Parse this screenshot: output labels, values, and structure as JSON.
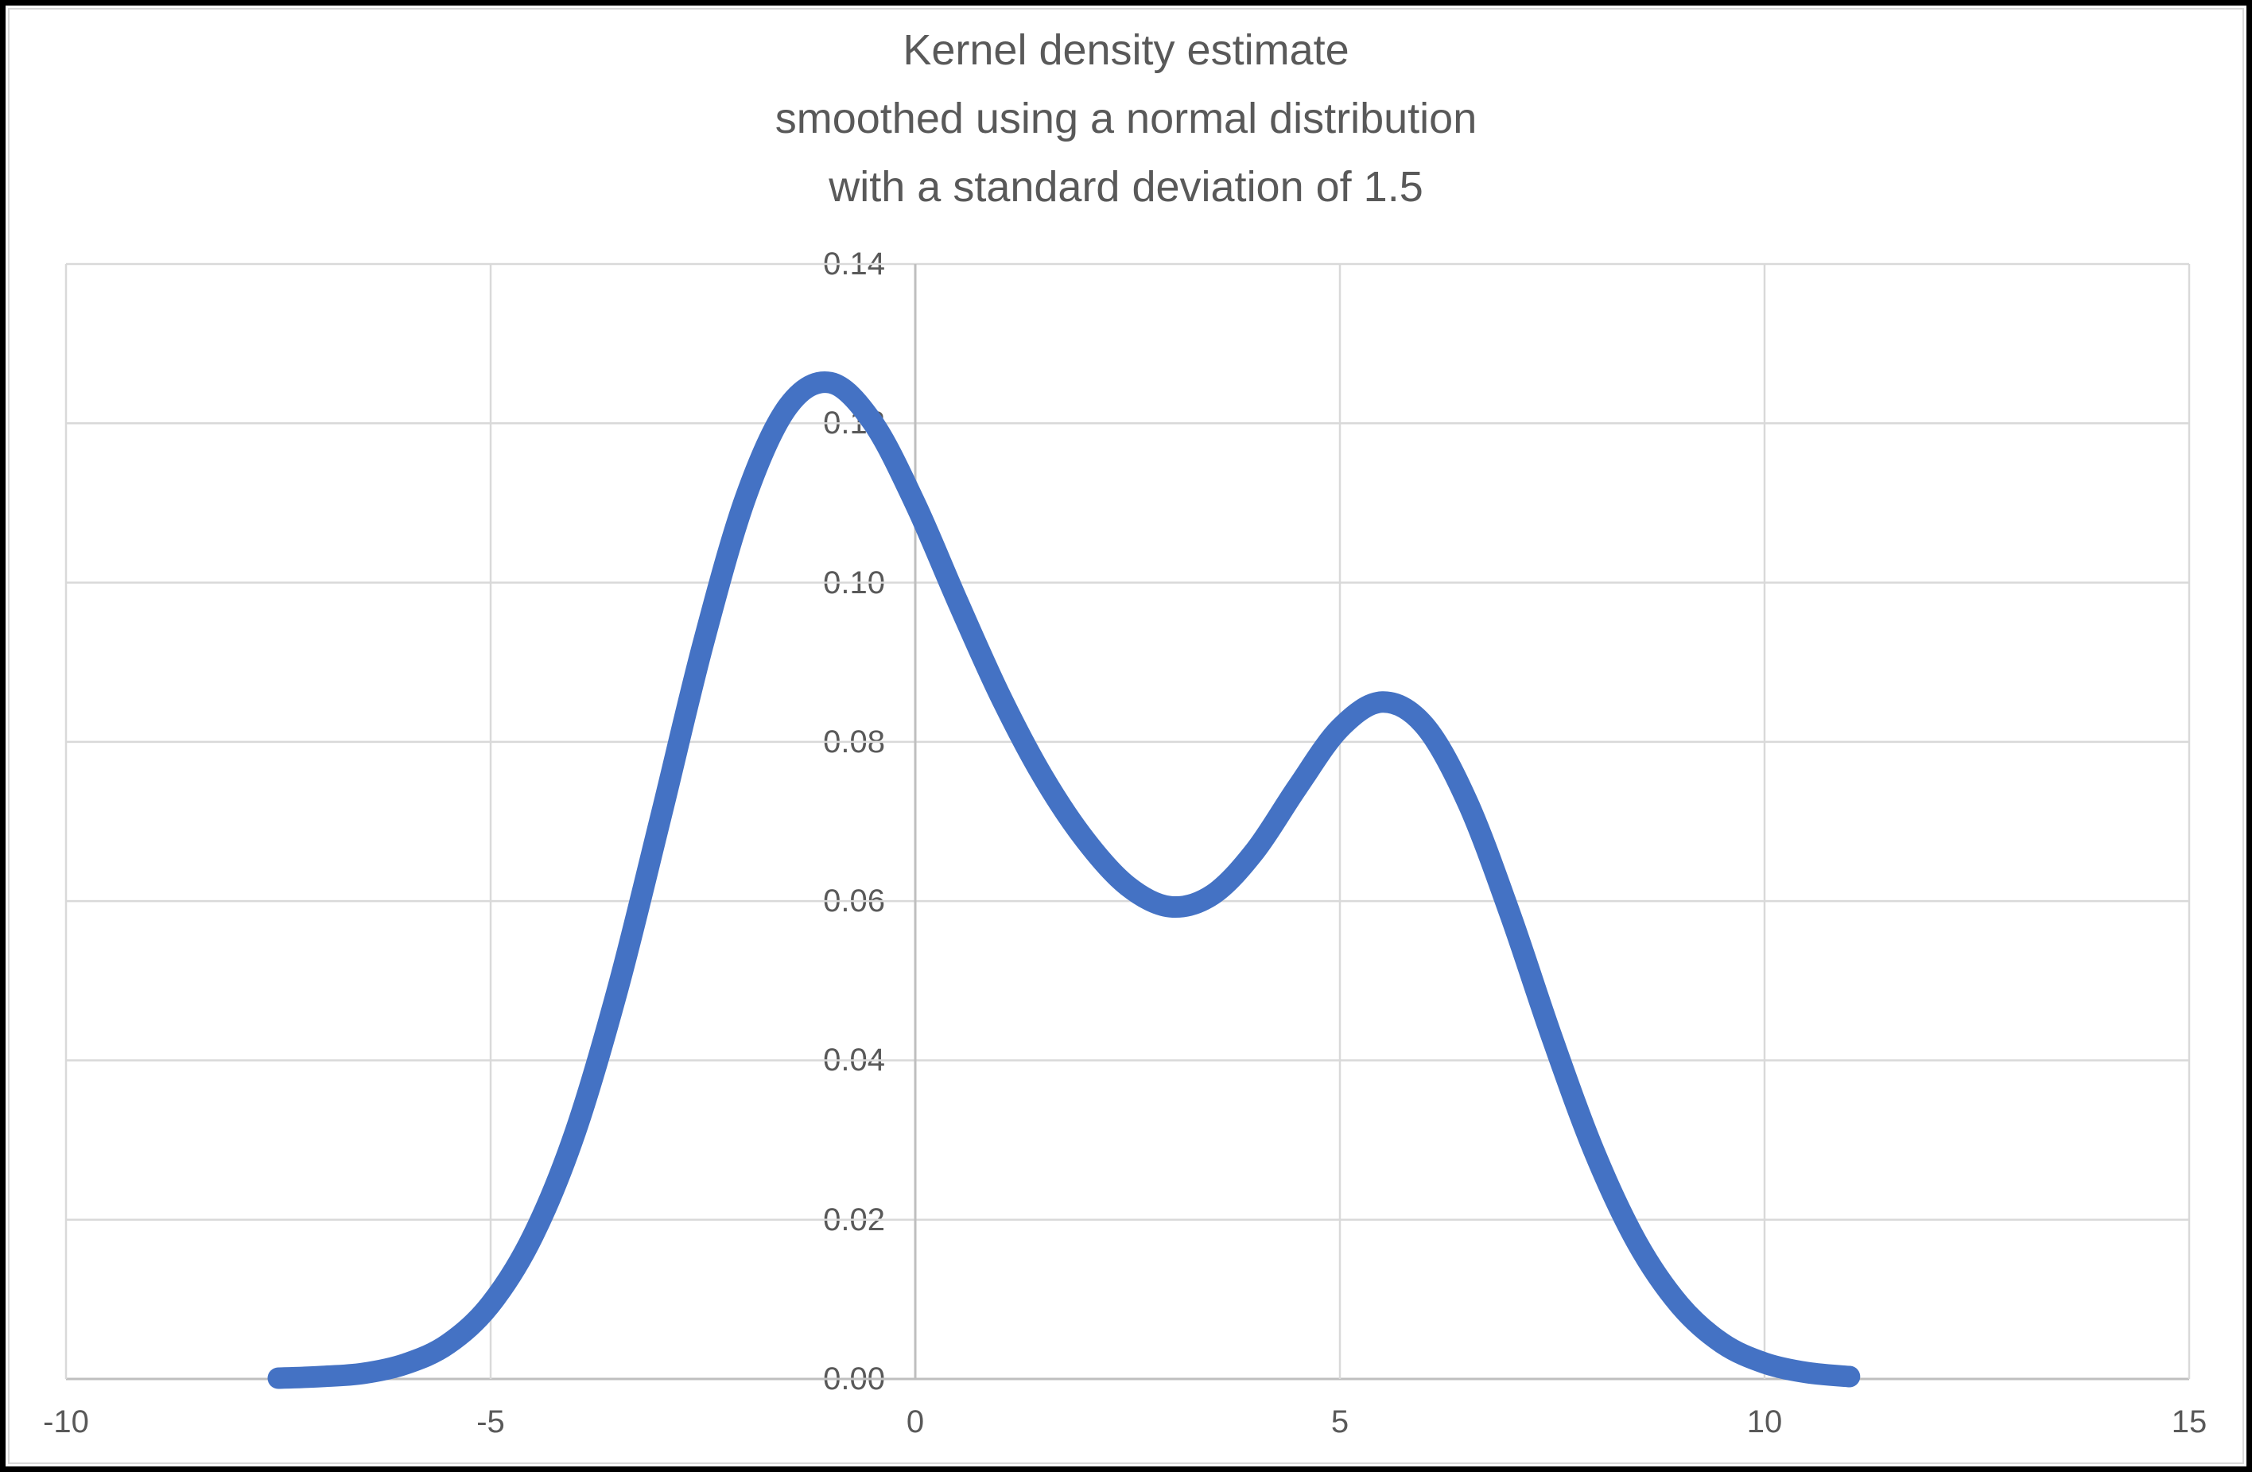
{
  "title": {
    "line1": "Kernel density estimate",
    "line2": "smoothed using a normal distribution",
    "line3": "with a standard deviation of 1.5"
  },
  "colors": {
    "series": "#4472C4",
    "gridline": "#D9D9D9",
    "axis_line": "#BFBFBF",
    "text": "#595959",
    "background": "#FFFFFF",
    "frame": "#000000"
  },
  "chart_data": {
    "type": "line",
    "title": "Kernel density estimate smoothed using a normal distribution with a standard deviation of 1.5",
    "xlabel": "",
    "ylabel": "",
    "xlim": [
      -10,
      15
    ],
    "ylim": [
      0,
      0.14
    ],
    "grid": true,
    "legend": "none",
    "x_ticks": [
      -10,
      -5,
      0,
      5,
      10,
      15
    ],
    "x_tick_labels": [
      "-10",
      "-5",
      "0",
      "5",
      "10",
      "15"
    ],
    "y_ticks": [
      0,
      0.02,
      0.04,
      0.06,
      0.08,
      0.1,
      0.12,
      0.14
    ],
    "y_tick_labels": [
      "0.00",
      "0.02",
      "0.04",
      "0.06",
      "0.08",
      "0.10",
      "0.12",
      "0.14"
    ],
    "y_axis_cross_x": 0,
    "series": [
      {
        "name": "kernel-density-estimate",
        "color": "#4472C4",
        "x": [
          -7.5,
          -7.0,
          -6.5,
          -6.0,
          -5.5,
          -5.0,
          -4.5,
          -4.0,
          -3.5,
          -3.0,
          -2.5,
          -2.0,
          -1.5,
          -1.0,
          -0.5,
          0.0,
          0.5,
          1.0,
          1.5,
          2.0,
          2.5,
          3.0,
          3.5,
          4.0,
          4.5,
          5.0,
          5.5,
          6.0,
          6.5,
          7.0,
          7.5,
          8.0,
          8.5,
          9.0,
          9.5,
          10.0,
          10.5,
          11.0
        ],
        "y": [
          0.0001,
          0.0003,
          0.0007,
          0.0019,
          0.0044,
          0.0094,
          0.018,
          0.0311,
          0.0491,
          0.0704,
          0.0922,
          0.1106,
          0.1221,
          0.1251,
          0.1201,
          0.1099,
          0.0976,
          0.0858,
          0.0757,
          0.0677,
          0.0619,
          0.0593,
          0.0608,
          0.0663,
          0.0743,
          0.0817,
          0.085,
          0.082,
          0.0725,
          0.0585,
          0.0428,
          0.0284,
          0.0171,
          0.0093,
          0.0045,
          0.002,
          0.0008,
          0.0003
        ]
      }
    ]
  }
}
